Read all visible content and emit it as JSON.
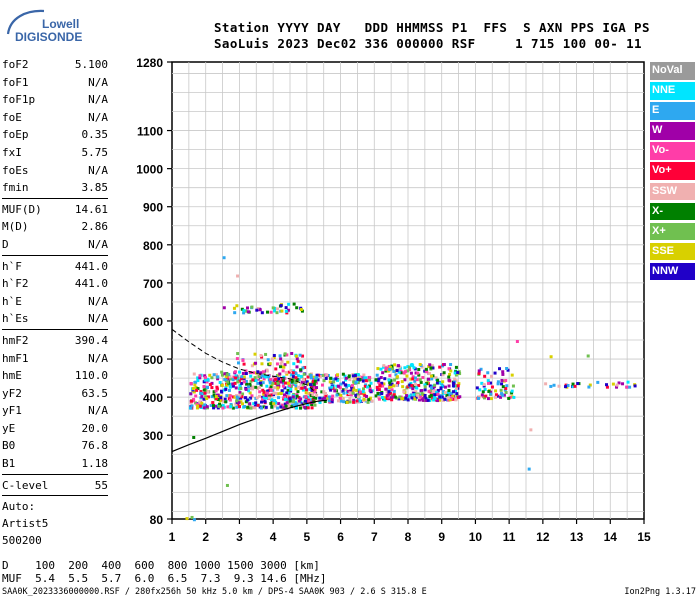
{
  "logo": {
    "line1": "Lowell",
    "line2": "DIGISONDE"
  },
  "header": {
    "line1": "Station YYYY DAY   DDD HHMMSS P1  FFS  S AXN PPS IGA PS",
    "line2": "SaoLuis 2023 Dec02 336 000000 RSF     1 715 100 00- 11"
  },
  "scaled_parameters": [
    {
      "label": "foF2",
      "value": "5.100"
    },
    {
      "label": "foF1",
      "value": "N/A"
    },
    {
      "label": "foF1p",
      "value": "N/A"
    },
    {
      "label": "foE",
      "value": "N/A"
    },
    {
      "label": "foEp",
      "value": "0.35"
    },
    {
      "label": "fxI",
      "value": "5.75"
    },
    {
      "label": "foEs",
      "value": "N/A"
    },
    {
      "label": "fmin",
      "value": "3.85",
      "sep_after": true
    },
    {
      "label": "MUF(D)",
      "value": "14.61"
    },
    {
      "label": "M(D)",
      "value": "2.86"
    },
    {
      "label": "D",
      "value": "N/A",
      "sep_after": true
    },
    {
      "label": "h`F",
      "value": "441.0"
    },
    {
      "label": "h`F2",
      "value": "441.0"
    },
    {
      "label": "h`E",
      "value": "N/A"
    },
    {
      "label": "h`Es",
      "value": "N/A",
      "sep_after": true
    },
    {
      "label": "hmF2",
      "value": "390.4"
    },
    {
      "label": "hmF1",
      "value": "N/A"
    },
    {
      "label": "hmE",
      "value": "110.0"
    },
    {
      "label": "yF2",
      "value": "63.5"
    },
    {
      "label": "yF1",
      "value": "N/A"
    },
    {
      "label": "yE",
      "value": "20.0"
    },
    {
      "label": "B0",
      "value": "76.8"
    },
    {
      "label": "B1",
      "value": "1.18",
      "sep_after": true
    },
    {
      "label": "C-level",
      "value": "55",
      "sep_after": true
    }
  ],
  "autoscaling": {
    "line1": "Auto:",
    "line2": "Artist5",
    "line3": "500200"
  },
  "legend": [
    {
      "label": "NoVal",
      "color": "#9a9a9a"
    },
    {
      "label": "NNE",
      "color": "#00e5ff"
    },
    {
      "label": "E",
      "color": "#2ea8f0"
    },
    {
      "label": "W",
      "color": "#a000a8"
    },
    {
      "label": "Vo-",
      "color": "#ff3da8"
    },
    {
      "label": "Vo+",
      "color": "#ff0038"
    },
    {
      "label": "SSW",
      "color": "#f0b0b0"
    },
    {
      "label": "X-",
      "color": "#008000"
    },
    {
      "label": "X+",
      "color": "#70c050"
    },
    {
      "label": "SSE",
      "color": "#d8d000"
    },
    {
      "label": "NNW",
      "color": "#2000c8"
    }
  ],
  "chart_data": {
    "type": "scatter",
    "title": "",
    "xlabel": "",
    "ylabel": "",
    "xlim": [
      1,
      15
    ],
    "ylim": [
      80,
      1280
    ],
    "x_ticks": [
      "1",
      "2",
      "3",
      "4",
      "5",
      "6",
      "7",
      "8",
      "9",
      "10",
      "11",
      "12",
      "13",
      "14",
      "15"
    ],
    "y_ticks": [
      "80",
      "200",
      "300",
      "400",
      "500",
      "600",
      "700",
      "800",
      "900",
      "1000",
      "1100",
      "1280"
    ],
    "y_tick_values": [
      80,
      200,
      300,
      400,
      500,
      600,
      700,
      800,
      900,
      1000,
      1100,
      1280
    ],
    "grid": true,
    "legend_position": "right",
    "profile_line": {
      "name": "",
      "points": [
        [
          1,
          257
        ],
        [
          1.5,
          275
        ],
        [
          2,
          292
        ],
        [
          2.5,
          310
        ],
        [
          3,
          328
        ],
        [
          3.5,
          344
        ],
        [
          4,
          358
        ],
        [
          4.5,
          372
        ],
        [
          5,
          383
        ],
        [
          5.3,
          389
        ],
        [
          5.6,
          392
        ]
      ]
    },
    "profile_dashed": {
      "name": "",
      "points": [
        [
          1,
          578
        ],
        [
          1.5,
          545
        ],
        [
          2,
          515
        ],
        [
          2.5,
          492
        ],
        [
          3,
          474
        ],
        [
          3.5,
          462
        ],
        [
          4,
          455
        ],
        [
          4.5,
          448
        ],
        [
          5,
          432
        ],
        [
          5.3,
          410
        ]
      ]
    },
    "trace_clusters": [
      {
        "x": [
          1.5,
          5.2
        ],
        "y": [
          375,
          470
        ],
        "n": 520
      },
      {
        "x": [
          2.8,
          4.9
        ],
        "y": [
          440,
          520
        ],
        "n": 120
      },
      {
        "x": [
          5.0,
          6.9
        ],
        "y": [
          390,
          465
        ],
        "n": 240
      },
      {
        "x": [
          7.0,
          9.5
        ],
        "y": [
          395,
          490
        ],
        "n": 360
      },
      {
        "x": [
          10.0,
          11.1
        ],
        "y": [
          400,
          480
        ],
        "n": 70
      },
      {
        "x": [
          2.5,
          4.9
        ],
        "y": [
          625,
          650
        ],
        "n": 40
      },
      {
        "x": [
          12.0,
          14.7
        ],
        "y": [
          430,
          445
        ],
        "n": 30
      }
    ],
    "isolated_points": [
      [
        1.4,
        85
      ],
      [
        1.55,
        88
      ],
      [
        1.62,
        82
      ],
      [
        2.5,
        770
      ],
      [
        2.9,
        722
      ],
      [
        2.6,
        172
      ],
      [
        11.6,
        318
      ],
      [
        11.55,
        215
      ],
      [
        1.6,
        298
      ],
      [
        11.2,
        550
      ],
      [
        12.2,
        510
      ],
      [
        13.3,
        512
      ]
    ]
  },
  "muf_table": {
    "row1": "D    100  200  400  600  800 1000 1500 3000 [km]",
    "row2": "MUF  5.4  5.5  5.7  6.0  6.5  7.3  9.3 14.6 [MHz]"
  },
  "footer": {
    "left": "SAA0K_2023336000000.RSF / 280fx256h 50 kHz 5.0 km / DPS-4 SAA0K 903 / 2.6 S 315.8 E",
    "right": "Ion2Png 1.3.17"
  }
}
